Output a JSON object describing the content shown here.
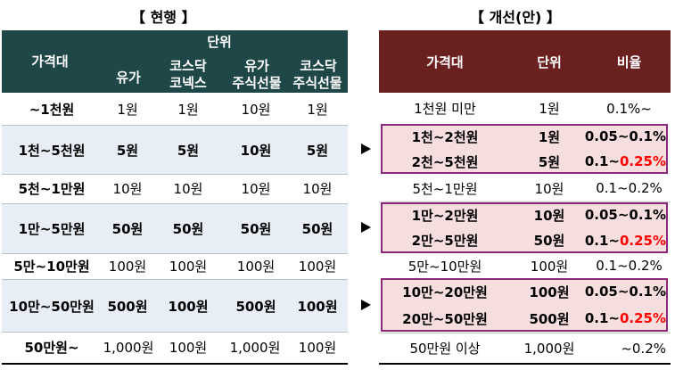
{
  "titles": {
    "current": "【 현행 】",
    "proposed": "【 개선(안) 】"
  },
  "left": {
    "header": {
      "price": "가격대",
      "unit": "단위",
      "c1": "유가",
      "c2a": "코스닥",
      "c2b": "코넥스",
      "c3a": "유가",
      "c3b": "주식선물",
      "c4a": "코스닥",
      "c4b": "주식선물"
    },
    "rows": [
      {
        "price": "~1천원",
        "v1": "1원",
        "v2": "1원",
        "v3": "10원",
        "v4": "1원"
      },
      {
        "price": "1천~5천원",
        "v1": "5원",
        "v2": "5원",
        "v3": "10원",
        "v4": "5원"
      },
      {
        "price": "5천~1만원",
        "v1": "10원",
        "v2": "10원",
        "v3": "10원",
        "v4": "10원"
      },
      {
        "price": "1만~5만원",
        "v1": "50원",
        "v2": "50원",
        "v3": "50원",
        "v4": "50원"
      },
      {
        "price": "5만~10만원",
        "v1": "100원",
        "v2": "100원",
        "v3": "100원",
        "v4": "100원"
      },
      {
        "price": "10만~50만원",
        "v1": "500원",
        "v2": "100원",
        "v3": "500원",
        "v4": "100원"
      },
      {
        "price": "50만원~",
        "v1": "1,000원",
        "v2": "100원",
        "v3": "1,000원",
        "v4": "100원"
      }
    ]
  },
  "right": {
    "header": {
      "price": "가격대",
      "unit": "단위",
      "ratio": "비율"
    },
    "rows": [
      {
        "price": "1천원 미만",
        "unit": "1원",
        "ratio": "0.1%~"
      },
      {
        "price": "1천~2천원",
        "unit": "1원",
        "ratio": "0.05~0.1%"
      },
      {
        "price": "2천~5천원",
        "unit": "5원",
        "ratio_a": "0.1~",
        "ratio_b": "0.25%"
      },
      {
        "price": "5천~1만원",
        "unit": "10원",
        "ratio": "0.1~0.2%"
      },
      {
        "price": "1만~2만원",
        "unit": "10원",
        "ratio": "0.05~0.1%"
      },
      {
        "price": "2만~5만원",
        "unit": "50원",
        "ratio_a": "0.1~",
        "ratio_b": "0.25%"
      },
      {
        "price": "5만~10만원",
        "unit": "100원",
        "ratio": "0.1~0.2%"
      },
      {
        "price": "10만~20만원",
        "unit": "100원",
        "ratio": "0.05~0.1%"
      },
      {
        "price": "20만~50만원",
        "unit": "500원",
        "ratio_a": "0.1~",
        "ratio_b": "0.25%"
      },
      {
        "price": "50만원 이상",
        "unit": "1,000원",
        "ratio": "~0.2%"
      }
    ]
  },
  "colors": {
    "left_header": "#1f4747",
    "right_header": "#6b2020",
    "highlight": "#ff0000",
    "box_border": "#8b2a7a"
  }
}
